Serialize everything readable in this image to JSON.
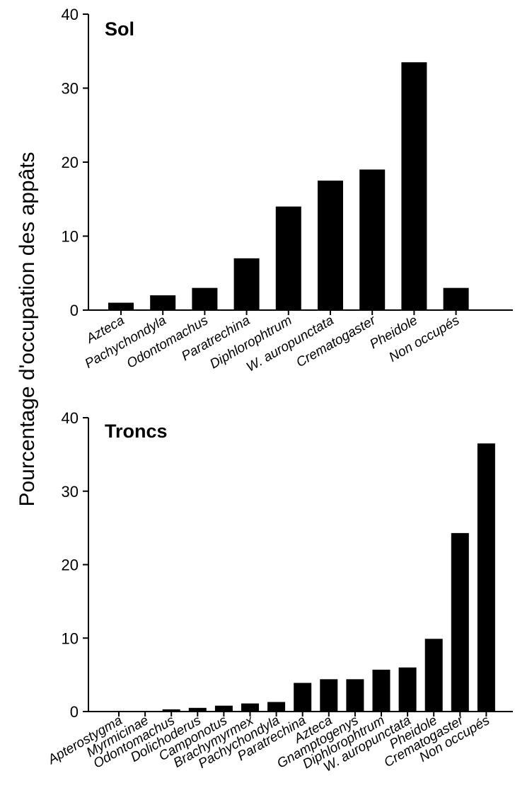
{
  "figure": {
    "ylabel": "Pourcentage d'occupation des appâts"
  },
  "chart_data": [
    {
      "type": "bar",
      "title": "Sol",
      "xlabel": "",
      "ylabel": "Pourcentage d'occupation des appâts",
      "ylim": [
        0,
        40
      ],
      "yticks": [
        0,
        10,
        20,
        30,
        40
      ],
      "categories": [
        "Azteca",
        "Pachychondyla",
        "Odontomachus",
        "Paratrechina",
        "Diphlorophtrum",
        "W. auropunctata",
        "Crematogaster",
        "Pheidole",
        "Non occupés"
      ],
      "values": [
        1,
        2,
        3,
        7,
        14,
        17.5,
        19,
        33.5,
        3
      ],
      "bar_color": "#000000"
    },
    {
      "type": "bar",
      "title": "Troncs",
      "xlabel": "",
      "ylabel": "Pourcentage d'occupation des appâts",
      "ylim": [
        0,
        40
      ],
      "yticks": [
        0,
        10,
        20,
        30,
        40
      ],
      "categories": [
        "Apterostygma",
        "Myrmicinae",
        "Odontomachus",
        "Dolichoderus",
        "Camponotus",
        "Brachymyrmex",
        "Pachychondyla",
        "Paratrechina",
        "Azteca",
        "Gnamptogenys",
        "Diphlorophtrum",
        "W. auropunctata",
        "Pheidole",
        "Crematogaster",
        "Non occupés"
      ],
      "values": [
        0,
        0,
        0.3,
        0.5,
        0.8,
        1.1,
        1.3,
        3.9,
        4.4,
        4.4,
        5.7,
        6,
        9.9,
        24.3,
        36.5
      ],
      "bar_color": "#000000"
    }
  ]
}
